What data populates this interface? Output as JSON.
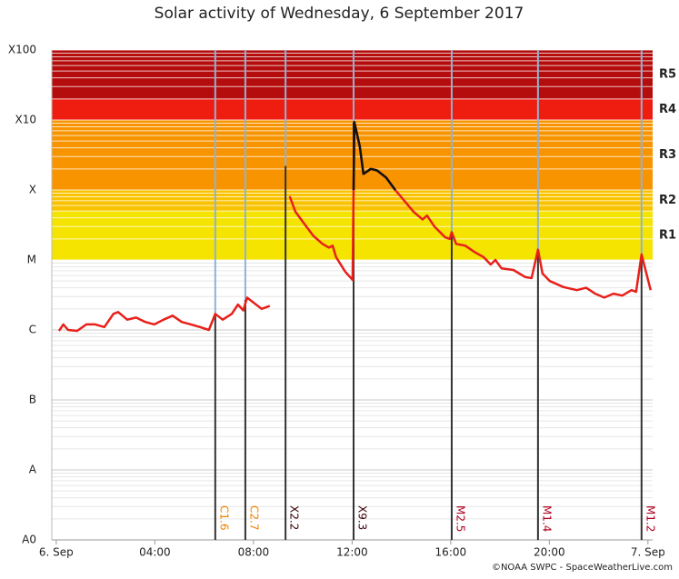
{
  "chart_data": {
    "type": "line",
    "title": "Solar activity of Wednesday, 6 September 2017",
    "footer": "©NOAA SWPC - SpaceWeatherLive.com",
    "log_y": true,
    "ylim": [
      1e-09,
      0.01
    ],
    "yticks": [
      {
        "value": 1e-09,
        "label": "A0"
      },
      {
        "value": 1e-08,
        "label": "A"
      },
      {
        "value": 1e-07,
        "label": "B"
      },
      {
        "value": 1e-06,
        "label": "C"
      },
      {
        "value": 1e-05,
        "label": "M"
      },
      {
        "value": 0.0001,
        "label": "X"
      },
      {
        "value": 0.001,
        "label": "X10"
      },
      {
        "value": 0.01,
        "label": "X100"
      }
    ],
    "xlim": [
      -0.18,
      24.19
    ],
    "xticks": [
      {
        "value": 0,
        "label": "6. Sep"
      },
      {
        "value": 4,
        "label": "04:00"
      },
      {
        "value": 8,
        "label": "08:00"
      },
      {
        "value": 12,
        "label": "12:00"
      },
      {
        "value": 16,
        "label": "16:00"
      },
      {
        "value": 20,
        "label": "20:00"
      },
      {
        "value": 24,
        "label": "7. Sep"
      }
    ],
    "minor_grid": true,
    "scales": [
      {
        "label": "R1",
        "value": 1e-05,
        "color": "#f4e400"
      },
      {
        "label": "R2",
        "value": 5e-05,
        "color": "#f9c300"
      },
      {
        "label": "R3",
        "value": 0.0001,
        "color": "#f79400"
      },
      {
        "label": "R4",
        "value": 0.001,
        "color": "#ee1d10"
      },
      {
        "label": "R5",
        "value": 0.002,
        "color": "#b50d0d"
      }
    ],
    "flares": [
      {
        "label": "C1.6",
        "x": 6.45,
        "value": 1.6e-06,
        "color": "#f08000"
      },
      {
        "label": "C2.7",
        "x": 7.67,
        "value": 2.7e-06,
        "color": "#f08000"
      },
      {
        "label": "X2.2",
        "x": 9.3,
        "value": 0.00022,
        "color": "#3a0008"
      },
      {
        "label": "X9.3",
        "x": 12.06,
        "value": 0.00093,
        "color": "#3a0008"
      },
      {
        "label": "M2.5",
        "x": 16.04,
        "value": 2.5e-05,
        "color": "#b0001e"
      },
      {
        "label": "M1.4",
        "x": 19.54,
        "value": 1.4e-05,
        "color": "#b0001e"
      },
      {
        "label": "M1.2",
        "x": 23.74,
        "value": 1.2e-05,
        "color": "#b0001e"
      }
    ],
    "x": [
      0.11,
      0.29,
      0.48,
      0.85,
      1.22,
      1.58,
      1.95,
      2.32,
      2.51,
      2.88,
      3.24,
      3.61,
      3.98,
      4.35,
      4.72,
      5.09,
      5.46,
      5.83,
      6.19,
      6.45,
      6.75,
      7.12,
      7.37,
      7.59,
      7.74,
      8.04,
      8.33,
      8.66,
      9.0,
      9.47,
      9.7,
      10.06,
      10.43,
      10.8,
      11.06,
      11.21,
      11.35,
      11.72,
      12.02,
      12.06,
      12.09,
      12.31,
      12.46,
      12.76,
      13.01,
      13.38,
      13.75,
      14.12,
      14.49,
      14.86,
      15.04,
      15.34,
      15.78,
      15.96,
      16.04,
      16.22,
      16.59,
      16.96,
      17.33,
      17.62,
      17.81,
      18.06,
      18.54,
      19.02,
      19.28,
      19.54,
      19.72,
      20.02,
      20.57,
      21.12,
      21.49,
      21.86,
      22.23,
      22.6,
      22.96,
      23.33,
      23.52,
      23.74,
      23.89,
      24.11
    ],
    "series": [
      {
        "color": "#e8201a",
        "values": [
          9.7e-07,
          1.2e-06,
          1e-06,
          9.7e-07,
          1.2e-06,
          1.2e-06,
          1.1e-06,
          1.7e-06,
          1.8e-06,
          1.4e-06,
          1.5e-06,
          1.3e-06,
          1.2e-06,
          1.4e-06,
          1.6e-06,
          1.3e-06,
          1.2e-06,
          1.1e-06,
          1e-06,
          1.7e-06,
          1.4e-06,
          1.7e-06,
          2.3e-06,
          1.9e-06,
          2.9e-06,
          2.4e-06,
          2e-06,
          2.2e-06,
          null,
          8.1e-05,
          4.9e-05,
          3.3e-05,
          2.2e-05,
          1.7e-05,
          1.5e-05,
          1.6e-05,
          1.1e-05,
          6.8e-06,
          5.2e-06,
          0.0001,
          0.00093,
          0.00042,
          0.00017,
          0.0002,
          0.00019,
          0.00015,
          0.0001,
          7e-05,
          4.9e-05,
          3.8e-05,
          4.3e-05,
          3e-05,
          2.1e-05,
          2e-05,
          2.5e-05,
          1.7e-05,
          1.6e-05,
          1.3e-05,
          1.1e-05,
          8.6e-06,
          1e-05,
          7.6e-06,
          7.2e-06,
          5.7e-06,
          5.5e-06,
          1.4e-05,
          6.4e-06,
          5e-06,
          4.1e-06,
          3.7e-06,
          4e-06,
          3.3e-06,
          2.9e-06,
          3.3e-06,
          3.1e-06,
          3.7e-06,
          3.5e-06,
          1.2e-05,
          7.4e-06,
          3.7e-06
        ]
      },
      {
        "color": "#111111",
        "values": [
          null,
          null,
          null,
          null,
          null,
          null,
          null,
          null,
          null,
          null,
          null,
          null,
          null,
          null,
          null,
          null,
          null,
          null,
          null,
          null,
          null,
          null,
          null,
          null,
          null,
          null,
          null,
          null,
          null,
          null,
          null,
          null,
          null,
          null,
          null,
          null,
          null,
          null,
          null,
          0.0001,
          0.00093,
          0.00042,
          0.00017,
          0.0002,
          0.00019,
          0.00015,
          0.0001,
          null,
          null,
          null,
          null,
          null,
          null,
          null,
          null,
          null,
          null,
          null,
          null,
          null,
          null,
          null,
          null,
          null,
          null,
          null,
          null,
          null,
          null,
          null,
          null,
          null,
          null,
          null,
          null,
          null,
          null,
          null,
          null,
          null
        ]
      }
    ]
  }
}
